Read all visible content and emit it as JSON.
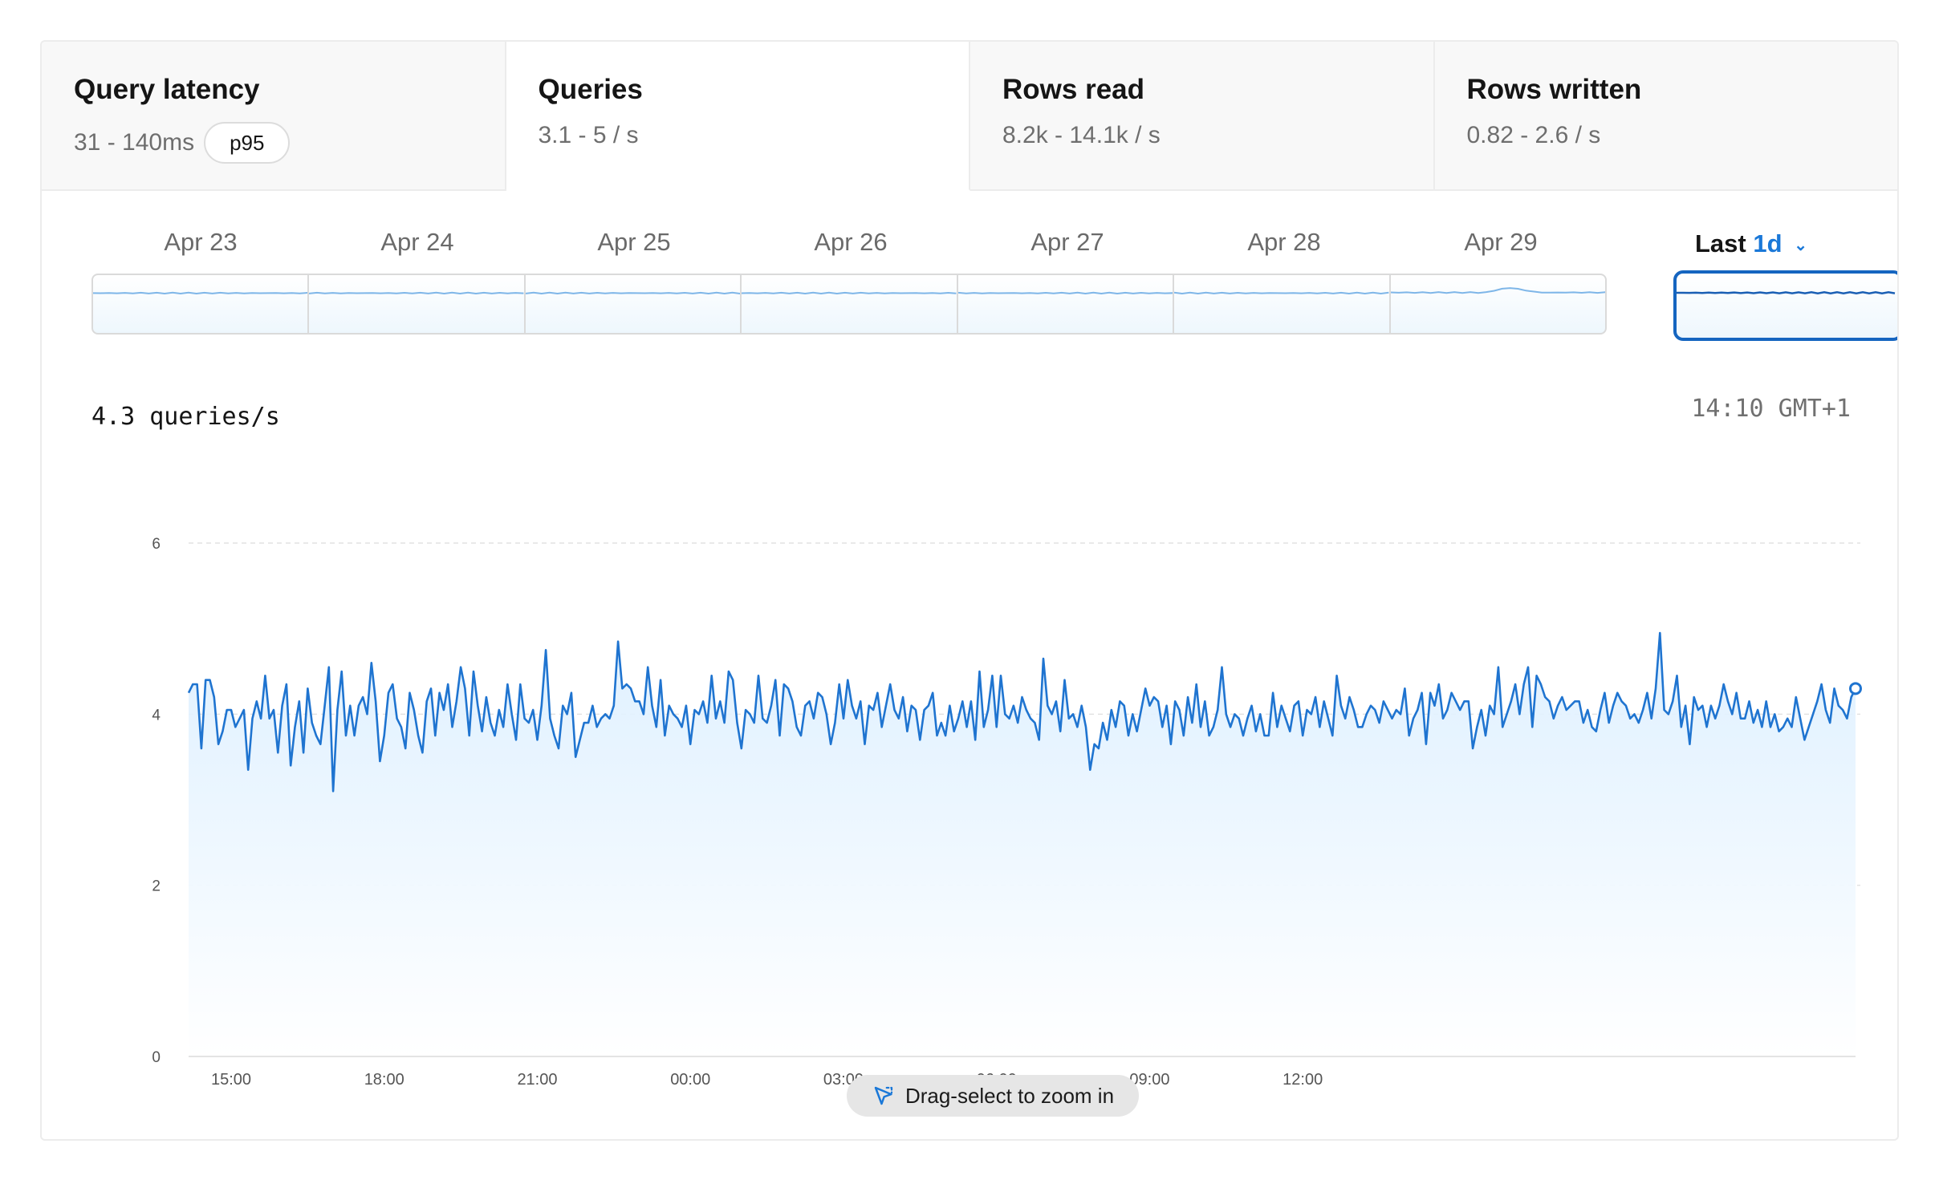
{
  "tabs": [
    {
      "title": "Query latency",
      "subtitle": "31 - 140ms",
      "badge": "p95",
      "active": false
    },
    {
      "title": "Queries",
      "subtitle": "3.1 - 5 / s",
      "active": true
    },
    {
      "title": "Rows read",
      "subtitle": "8.2k - 14.1k / s",
      "active": false
    },
    {
      "title": "Rows written",
      "subtitle": "0.82 - 2.6 / s",
      "active": false
    }
  ],
  "days": [
    "Apr 23",
    "Apr 24",
    "Apr 25",
    "Apr 26",
    "Apr 27",
    "Apr 28",
    "Apr 29"
  ],
  "range_selector": {
    "prefix": "Last",
    "value": "1d",
    "icon": "chevron-down-icon"
  },
  "readout": {
    "value": "4.3 queries/s",
    "time": "14:10 GMT+1"
  },
  "drag_hint": {
    "label": "Drag-select to zoom in",
    "icon": "cursor-select-icon"
  },
  "colors": {
    "accent": "#1a78d8",
    "line": "#1f74d0",
    "fill": "#e3f2fd",
    "selected_border": "#1565c0"
  },
  "chart_data": {
    "type": "area",
    "x_ticks": [
      "15:00",
      "18:00",
      "21:00",
      "00:00",
      "03:00",
      "06:00",
      "09:00",
      "12:00"
    ],
    "y_ticks": [
      0,
      2,
      4,
      6
    ],
    "ylim": [
      0,
      6
    ],
    "grid": true,
    "x_start": "14:10",
    "x_end": "14:10",
    "sample_interval_minutes": 5,
    "values": [
      4.25,
      4.35,
      4.35,
      3.6,
      4.4,
      4.4,
      4.2,
      3.65,
      3.8,
      4.05,
      4.05,
      3.85,
      3.95,
      4.05,
      3.35,
      3.95,
      4.15,
      3.95,
      4.45,
      3.95,
      4.05,
      3.55,
      4.1,
      4.35,
      3.4,
      3.85,
      4.15,
      3.55,
      4.3,
      3.9,
      3.75,
      3.65,
      4.1,
      4.55,
      3.1,
      4.05,
      4.5,
      3.75,
      4.1,
      3.75,
      4.1,
      4.2,
      4.0,
      4.6,
      4.15,
      3.45,
      3.75,
      4.25,
      4.35,
      3.95,
      3.85,
      3.6,
      4.25,
      4.05,
      3.75,
      3.55,
      4.15,
      4.3,
      3.75,
      4.25,
      4.05,
      4.35,
      3.85,
      4.15,
      4.55,
      4.3,
      3.75,
      4.5,
      4.1,
      3.8,
      4.2,
      3.9,
      3.75,
      4.05,
      3.85,
      4.35,
      4.0,
      3.7,
      4.35,
      3.95,
      3.9,
      4.05,
      3.7,
      4.1,
      4.75,
      3.95,
      3.75,
      3.6,
      4.1,
      4.0,
      4.25,
      3.5,
      3.7,
      3.9,
      3.9,
      4.1,
      3.85,
      3.95,
      4.0,
      3.95,
      4.1,
      4.85,
      4.3,
      4.35,
      4.3,
      4.15,
      4.15,
      4.0,
      4.55,
      4.1,
      3.85,
      4.4,
      3.75,
      4.1,
      4.0,
      3.95,
      3.85,
      4.1,
      3.65,
      4.05,
      4.0,
      4.15,
      3.9,
      4.45,
      3.95,
      4.15,
      3.9,
      4.5,
      4.4,
      3.9,
      3.6,
      4.05,
      4.0,
      3.9,
      4.45,
      3.95,
      3.9,
      4.1,
      4.4,
      3.75,
      4.35,
      4.3,
      4.15,
      3.85,
      3.75,
      4.1,
      4.15,
      3.95,
      4.25,
      4.2,
      4.0,
      3.65,
      3.9,
      4.35,
      3.95,
      4.4,
      4.1,
      3.95,
      4.15,
      3.65,
      4.1,
      4.05,
      4.25,
      3.85,
      4.1,
      4.35,
      4.05,
      3.95,
      4.2,
      3.8,
      4.1,
      4.05,
      3.7,
      4.05,
      4.1,
      4.25,
      3.75,
      3.9,
      3.75,
      4.1,
      3.8,
      3.95,
      4.15,
      3.85,
      4.15,
      3.7,
      4.5,
      3.85,
      4.05,
      4.45,
      3.85,
      4.45,
      4.0,
      3.95,
      4.1,
      3.9,
      4.2,
      4.05,
      3.95,
      3.9,
      3.7,
      4.65,
      4.1,
      4.0,
      4.15,
      3.8,
      4.4,
      3.95,
      4.0,
      3.85,
      4.1,
      3.85,
      3.35,
      3.65,
      3.6,
      3.9,
      3.7,
      4.05,
      3.85,
      4.15,
      4.1,
      3.75,
      4.0,
      3.8,
      4.05,
      4.3,
      4.1,
      4.2,
      4.15,
      3.85,
      4.1,
      3.65,
      4.15,
      4.05,
      3.75,
      4.2,
      3.9,
      4.35,
      3.85,
      4.15,
      3.75,
      3.85,
      4.05,
      4.55,
      4.0,
      3.85,
      4.0,
      3.95,
      3.75,
      3.95,
      4.1,
      3.8,
      4.0,
      3.75,
      3.75,
      4.25,
      3.85,
      4.1,
      3.95,
      3.8,
      4.1,
      4.15,
      3.75,
      4.05,
      4.0,
      4.2,
      3.85,
      4.15,
      3.95,
      3.75,
      4.45,
      4.1,
      3.95,
      4.2,
      4.05,
      3.85,
      3.85,
      4.0,
      4.1,
      4.05,
      3.9,
      4.15,
      4.05,
      3.95,
      4.05,
      4.0,
      4.3,
      3.75,
      3.95,
      4.05,
      4.25,
      3.65,
      4.25,
      4.1,
      4.35,
      3.95,
      4.05,
      4.25,
      4.15,
      4.05,
      4.15,
      4.15,
      3.6,
      3.85,
      4.05,
      3.75,
      4.1,
      4.0,
      4.55,
      3.85,
      4.0,
      4.15,
      4.35,
      4.0,
      4.35,
      4.55,
      3.85,
      4.45,
      4.35,
      4.2,
      4.15,
      3.95,
      4.1,
      4.2,
      4.05,
      4.1,
      4.15,
      4.15,
      3.9,
      4.05,
      3.85,
      3.8,
      4.05,
      4.25,
      3.9,
      4.1,
      4.25,
      4.15,
      4.1,
      3.95,
      4.0,
      3.9,
      4.05,
      4.25,
      3.95,
      4.3,
      4.95,
      4.05,
      4.0,
      4.15,
      4.45,
      3.85,
      4.1,
      3.65,
      4.2,
      4.05,
      4.1,
      3.85,
      4.1,
      3.95,
      4.1,
      4.35,
      4.15,
      4.0,
      4.25,
      3.95,
      3.95,
      4.15,
      3.9,
      4.05,
      3.85,
      4.15,
      3.85,
      4.0,
      3.8,
      3.85,
      3.95,
      3.85,
      4.2,
      3.95,
      3.7,
      3.85,
      4.0,
      4.15,
      4.35,
      4.05,
      3.9,
      4.3,
      4.1,
      4.05,
      3.95,
      4.2,
      4.3
    ]
  },
  "overview_data": {
    "per_day_level": [
      4.0,
      4.0,
      4.0,
      4.0,
      4.0,
      4.0,
      4.05
    ],
    "last_day_level": 4.0
  }
}
